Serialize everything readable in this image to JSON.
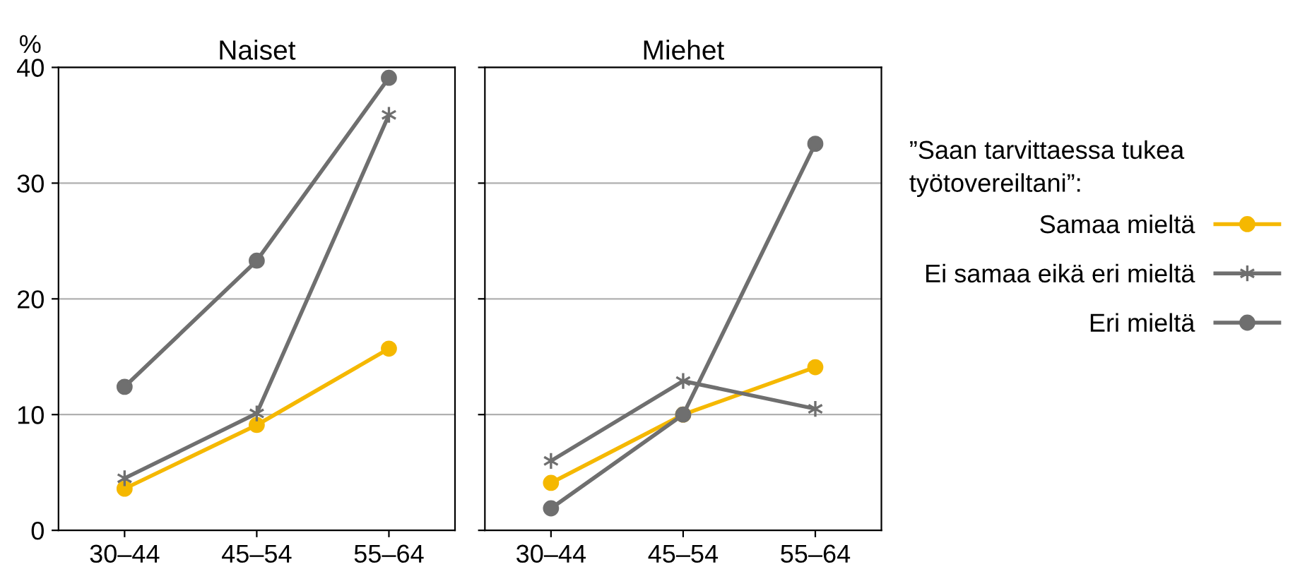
{
  "chart_data": [
    {
      "type": "line",
      "title": "Naiset",
      "ylabel": "%",
      "categories": [
        "30–44",
        "45–54",
        "55–64"
      ],
      "ylim": [
        0,
        40
      ],
      "yticks": [
        0,
        10,
        20,
        30,
        40
      ],
      "grid": "y",
      "legend": false,
      "series": [
        {
          "color": "#f5b800",
          "marker": "circle",
          "values": [
            3.6,
            9.1,
            15.7
          ]
        },
        {
          "color": "#6f6f6f",
          "marker": "cross",
          "values": [
            4.5,
            10.1,
            35.9
          ]
        },
        {
          "color": "#6f6f6f",
          "marker": "circle",
          "values": [
            12.4,
            23.3,
            39.1
          ]
        }
      ]
    },
    {
      "type": "line",
      "title": "Miehet",
      "categories": [
        "30–44",
        "45–54",
        "55–64"
      ],
      "ylim": [
        0,
        40
      ],
      "yticks": [
        0,
        10,
        20,
        30,
        40
      ],
      "grid": "y",
      "tick_labels": "x",
      "legend": "right",
      "legend_title": "”Saan tarvittaessa tukea työtovereiltani”:",
      "series": [
        {
          "name": "Samaa mieltä",
          "color": "#f5b800",
          "marker": "circle",
          "values": [
            4.1,
            10.0,
            14.1
          ]
        },
        {
          "name": "Ei samaa eikä eri mieltä",
          "color": "#6f6f6f",
          "marker": "cross",
          "values": [
            6.0,
            12.9,
            10.5
          ]
        },
        {
          "name": "Eri mieltä",
          "color": "#6f6f6f",
          "marker": "circle",
          "values": [
            1.9,
            10.0,
            33.4
          ]
        }
      ]
    }
  ]
}
